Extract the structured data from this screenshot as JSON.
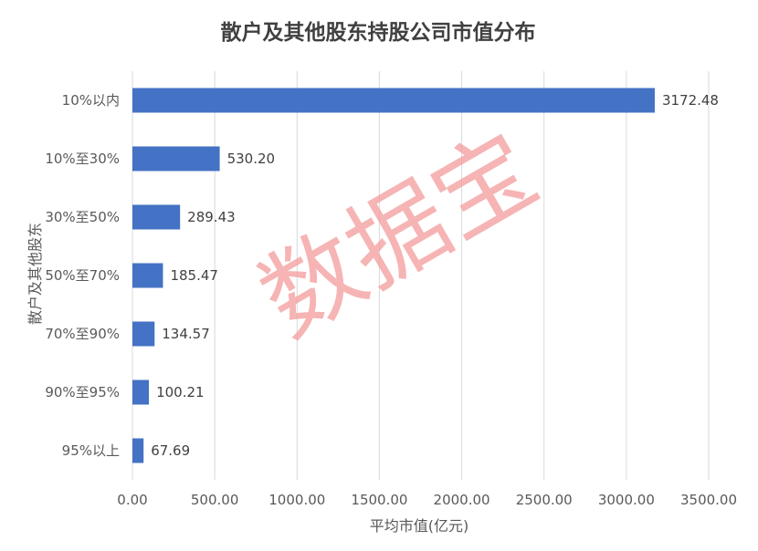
{
  "chart_data": {
    "type": "bar",
    "orientation": "horizontal",
    "title": "散户及其他股东持股公司市值分布",
    "xlabel": "平均市值(亿元)",
    "ylabel": "散户及其他股东",
    "categories": [
      "10%以内",
      "10%至30%",
      "30%至50%",
      "50%至70%",
      "70%至90%",
      "90%至95%",
      "95%以上"
    ],
    "values": [
      3172.48,
      530.2,
      289.43,
      185.47,
      134.57,
      100.21,
      67.69
    ],
    "value_labels": [
      "3172.48",
      "530.20",
      "289.43",
      "185.47",
      "134.57",
      "100.21",
      "67.69"
    ],
    "xlim": [
      0,
      3500
    ],
    "x_ticks": [
      "0.00",
      "500.00",
      "1000.00",
      "1500.00",
      "2000.00",
      "2500.00",
      "3000.00",
      "3500.00"
    ],
    "x_tick_values": [
      0,
      500,
      1000,
      1500,
      2000,
      2500,
      3000,
      3500
    ],
    "grid": "vertical",
    "legend": "none",
    "bar_color": "#4472c4"
  },
  "watermark": {
    "text": "数据宝",
    "color": "#f4a0a0"
  }
}
